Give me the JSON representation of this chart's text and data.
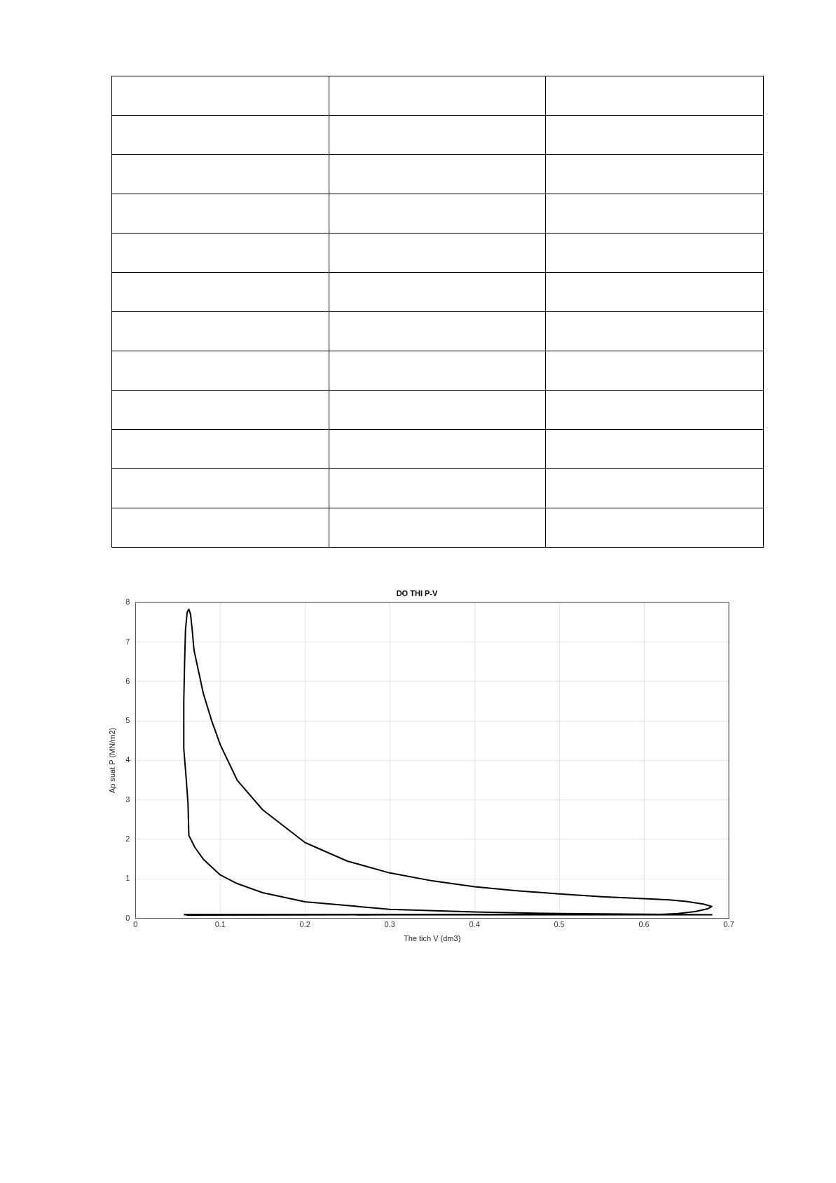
{
  "chart_data": {
    "type": "line",
    "title": "DO THI P-V",
    "xlabel": "The tich V (dm3)",
    "ylabel": "Ap suat P (MN/m2)",
    "xlim": [
      0,
      0.7
    ],
    "xticks": [
      0,
      0.1,
      0.2,
      0.3,
      0.4,
      0.5,
      0.6,
      0.7
    ],
    "ylim": [
      0,
      8
    ],
    "yticks": [
      0,
      1,
      2,
      3,
      4,
      5,
      6,
      7,
      8
    ],
    "grid": true,
    "legend": false,
    "marker": "none",
    "line_style": "solid",
    "series": [
      {
        "color": "#000000",
        "x": [
          0.06,
          0.3,
          0.68,
          0.63,
          0.5,
          0.4,
          0.3,
          0.2,
          0.15,
          0.12,
          0.1,
          0.08,
          0.07,
          0.063,
          0.062,
          0.06,
          0.057,
          0.057,
          0.058,
          0.059,
          0.061,
          0.063,
          0.065,
          0.067,
          0.069,
          0.075,
          0.08,
          0.09,
          0.1,
          0.12,
          0.15,
          0.2,
          0.25,
          0.3,
          0.35,
          0.4,
          0.45,
          0.5,
          0.55,
          0.6,
          0.63,
          0.65,
          0.67,
          0.68,
          0.675,
          0.66,
          0.64,
          0.62,
          0.3,
          0.06,
          0.057
        ],
        "values": [
          0.08,
          0.09,
          0.09,
          0.1,
          0.12,
          0.16,
          0.23,
          0.42,
          0.65,
          0.88,
          1.1,
          1.5,
          1.8,
          2.1,
          2.9,
          3.5,
          4.3,
          5.5,
          6.5,
          7.3,
          7.75,
          7.83,
          7.7,
          7.3,
          6.8,
          6.2,
          5.7,
          5.0,
          4.4,
          3.5,
          2.75,
          1.92,
          1.45,
          1.15,
          0.95,
          0.8,
          0.7,
          0.62,
          0.55,
          0.5,
          0.47,
          0.43,
          0.36,
          0.3,
          0.24,
          0.17,
          0.12,
          0.1,
          0.1,
          0.1,
          0.09
        ]
      }
    ]
  }
}
